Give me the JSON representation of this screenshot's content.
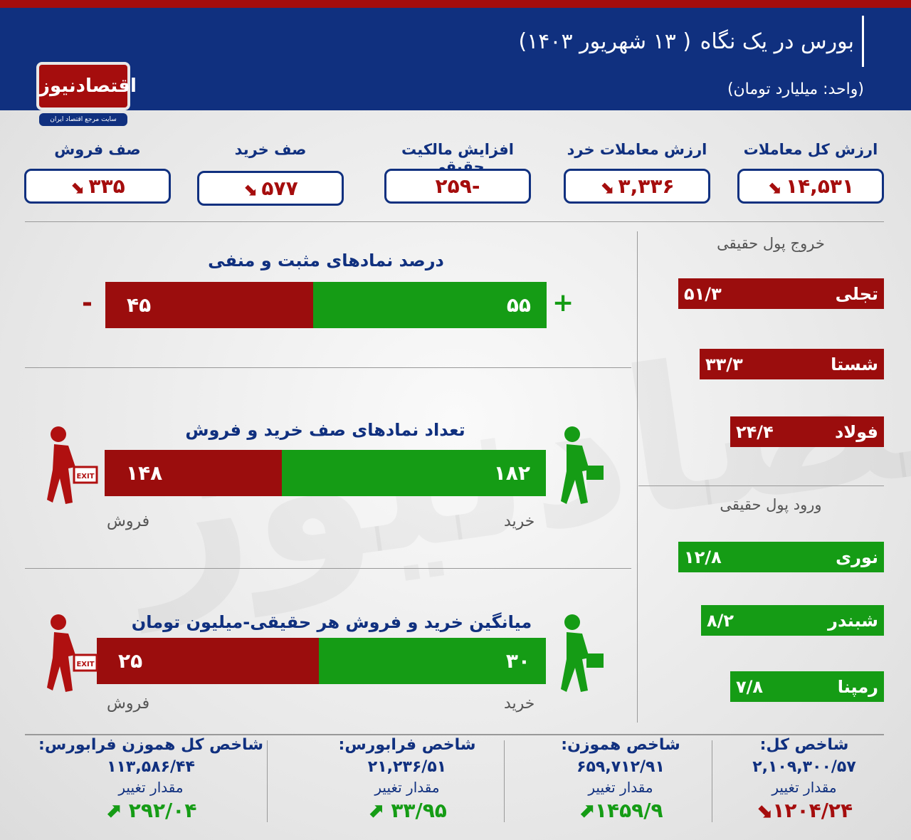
{
  "header": {
    "title": "بورس در یک نگاه",
    "date": "( ۱۳ شهریور ۱۴۰۳)",
    "unit": "(واحد: میلیارد تومان)",
    "logo": "اقتصادنیوز",
    "logo_sub": "سایت مرجع اقتصاد ایران"
  },
  "colors": {
    "blue": "#10307f",
    "red": "#9b0d0d",
    "green": "#159c15"
  },
  "kpis": [
    {
      "label": "ارزش کل معاملات",
      "value": "۱۴,۵۳۱",
      "trend": "down"
    },
    {
      "label": "ارزش معاملات خرد",
      "value": "۳,۳۳۶",
      "trend": "down"
    },
    {
      "label": "افزایش مالکیت حقیقی",
      "value": "-۲۵۹",
      "trend": "none"
    },
    {
      "label": "صف خرید",
      "value": "۵۷۷",
      "trend": "down"
    },
    {
      "label": "صف فروش",
      "value": "۳۳۵",
      "trend": "down"
    }
  ],
  "symbols_pct": {
    "title": "درصد نمادهای مثبت و منفی",
    "positive": "۵۵",
    "negative": "۴۵",
    "plus": "+",
    "minus": "-",
    "positive_pct": 55
  },
  "queues": {
    "title": "تعداد نمادهای صف خرید و فروش",
    "buy": "۱۸۲",
    "sell": "۱۴۸",
    "buy_label": "خرید",
    "sell_label": "فروش",
    "exit": "EXIT"
  },
  "avg": {
    "title": "میانگین خرید و فروش هر حقیقی-میلیون تومان",
    "buy": "۳۰",
    "sell": "۲۵",
    "buy_label": "خرید",
    "sell_label": "فروش",
    "exit": "EXIT"
  },
  "outflow": {
    "title": "خروج پول حقیقی",
    "items": [
      {
        "name": "تجلی",
        "value": "۵۱/۳"
      },
      {
        "name": "شستا",
        "value": "۳۳/۳"
      },
      {
        "name": "فولاد",
        "value": "۲۴/۴"
      }
    ]
  },
  "inflow": {
    "title": "ورود پول حقیقی",
    "items": [
      {
        "name": "نوری",
        "value": "۱۲/۸"
      },
      {
        "name": "شبندر",
        "value": "۸/۲"
      },
      {
        "name": "رمپنا",
        "value": "۷/۸"
      }
    ]
  },
  "indices": [
    {
      "name": "شاخص کل:",
      "value": "۲,۱۰۹,۳۰۰/۵۷",
      "change_label": "مقدار تغییر",
      "change": "۱۲۰۴/۲۴",
      "trend": "down"
    },
    {
      "name": "شاخص هموزن:",
      "value": "۶۵۹,۷۱۲/۹۱",
      "change_label": "مقدار تغییر",
      "change": "۱۴۵۹/۹",
      "trend": "up"
    },
    {
      "name": "شاخص فرابورس:",
      "value": "۲۱,۲۳۶/۵۱",
      "change_label": "مقدار تغییر",
      "change": "۳۳/۹۵",
      "trend": "up"
    },
    {
      "name": "شاخص کل هموزن فرابورس:",
      "value": "۱۱۳,۵۸۶/۴۴",
      "change_label": "مقدار تغییر",
      "change": "۲۹۲/۰۴",
      "trend": "up"
    }
  ]
}
